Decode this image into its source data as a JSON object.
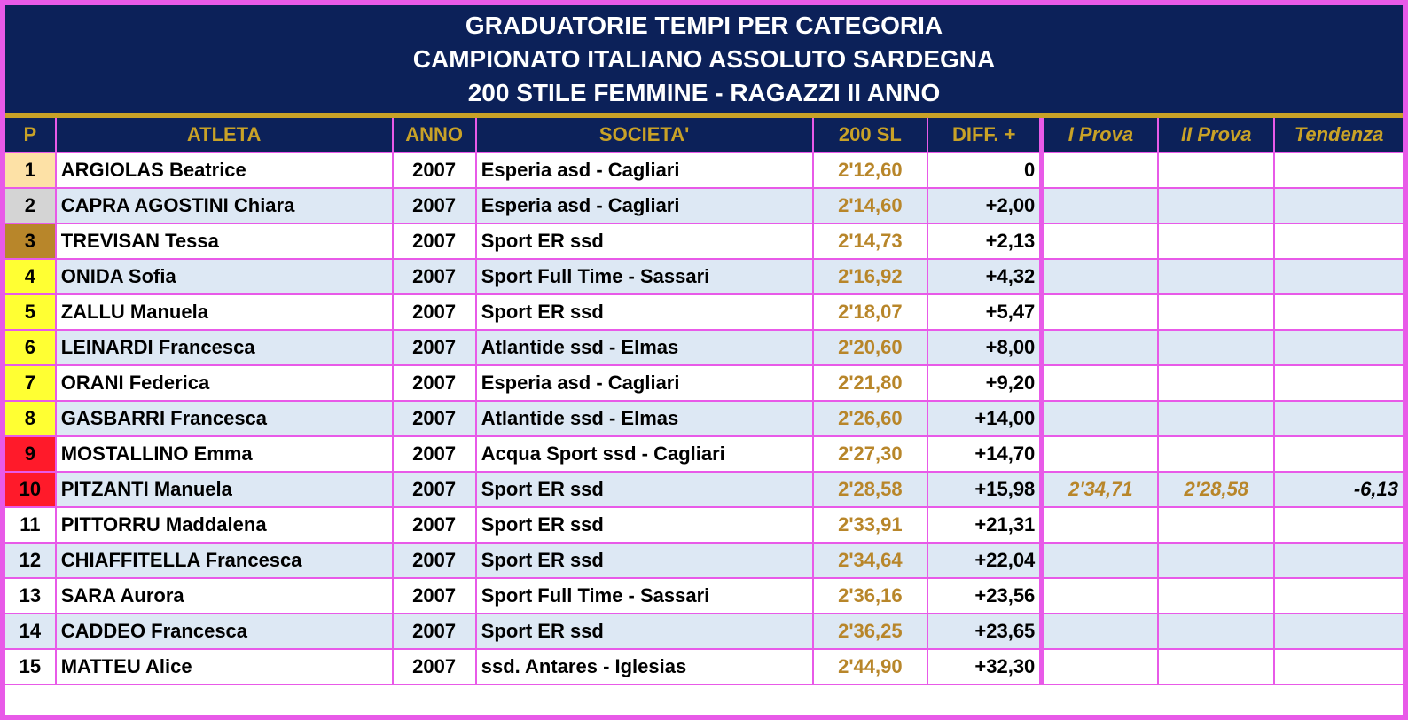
{
  "header": {
    "title": [
      "GRADUATORIE TEMPI PER CATEGORIA",
      "CAMPIONATO ITALIANO ASSOLUTO SARDEGNA",
      "200 STILE FEMMINE - RAGAZZI II ANNO"
    ]
  },
  "table": {
    "columns": [
      "P",
      "ATLETA",
      "ANNO",
      "SOCIETA'",
      "200 SL",
      "DIFF. +",
      "I Prova",
      "II Prova",
      "Tendenza"
    ],
    "rows": [
      [
        "1",
        "ARGIOLAS Beatrice",
        "2007",
        "Esperia asd - Cagliari",
        "2'12,60",
        "0"
      ],
      [
        "2",
        "CAPRA AGOSTINI Chiara",
        "2007",
        "Esperia asd - Cagliari",
        "2'14,60",
        "+2,00"
      ],
      [
        "3",
        "TREVISAN Tessa",
        "2007",
        "Sport ER ssd",
        "2'14,73",
        "+2,13"
      ],
      [
        "4",
        "ONIDA Sofia",
        "2007",
        "Sport Full Time - Sassari",
        "2'16,92",
        "+4,32"
      ],
      [
        "5",
        "ZALLU Manuela",
        "2007",
        "Sport ER ssd",
        "2'18,07",
        "+5,47"
      ],
      [
        "6",
        "LEINARDI Francesca",
        "2007",
        "Atlantide ssd - Elmas",
        "2'20,60",
        "+8,00"
      ],
      [
        "7",
        "ORANI Federica",
        "2007",
        "Esperia asd - Cagliari",
        "2'21,80",
        "+9,20"
      ],
      [
        "8",
        "GASBARRI Francesca",
        "2007",
        "Atlantide ssd - Elmas",
        "2'26,60",
        "+14,00"
      ],
      [
        "9",
        "MOSTALLINO Emma",
        "2007",
        "Acqua Sport ssd - Cagliari",
        "2'27,30",
        "+14,70"
      ],
      [
        "10",
        "PITZANTI Manuela",
        "2007",
        "Sport ER ssd",
        "2'28,58",
        "+15,98",
        "2'34,71",
        "2'28,58",
        "-6,13"
      ],
      [
        "11",
        "PITTORRU Maddalena",
        "2007",
        "Sport ER ssd",
        "2'33,91",
        "+21,31"
      ],
      [
        "12",
        "CHIAFFITELLA Francesca",
        "2007",
        "Sport ER ssd",
        "2'34,64",
        "+22,04"
      ],
      [
        "13",
        "SARA Aurora",
        "2007",
        "Sport Full Time - Sassari",
        "2'36,16",
        "+23,56"
      ],
      [
        "14",
        "CADDEO Francesca",
        "2007",
        "Sport ER ssd",
        "2'36,25",
        "+23,65"
      ],
      [
        "15",
        "MATTEU Alice",
        "2007",
        "ssd. Antares - Iglesias",
        "2'44,90",
        "+32,30"
      ]
    ]
  }
}
